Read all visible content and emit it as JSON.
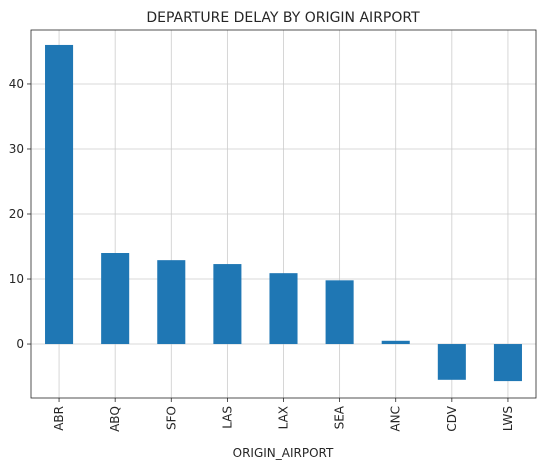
{
  "chart_data": {
    "type": "bar",
    "title": "DEPARTURE DELAY BY ORIGIN AIRPORT",
    "xlabel": "ORIGIN_AIRPORT",
    "ylabel": "",
    "categories": [
      "ABR",
      "ABQ",
      "SFO",
      "LAS",
      "LAX",
      "SEA",
      "ANC",
      "CDV",
      "LWS"
    ],
    "values": [
      46.0,
      14.0,
      12.9,
      12.3,
      10.9,
      9.8,
      0.5,
      -5.5,
      -5.7
    ],
    "ylim": [
      -8.3,
      48.3
    ],
    "yticks": [
      0,
      10,
      20,
      30,
      40
    ],
    "grid": true,
    "bar_color": "#1f77b4"
  }
}
